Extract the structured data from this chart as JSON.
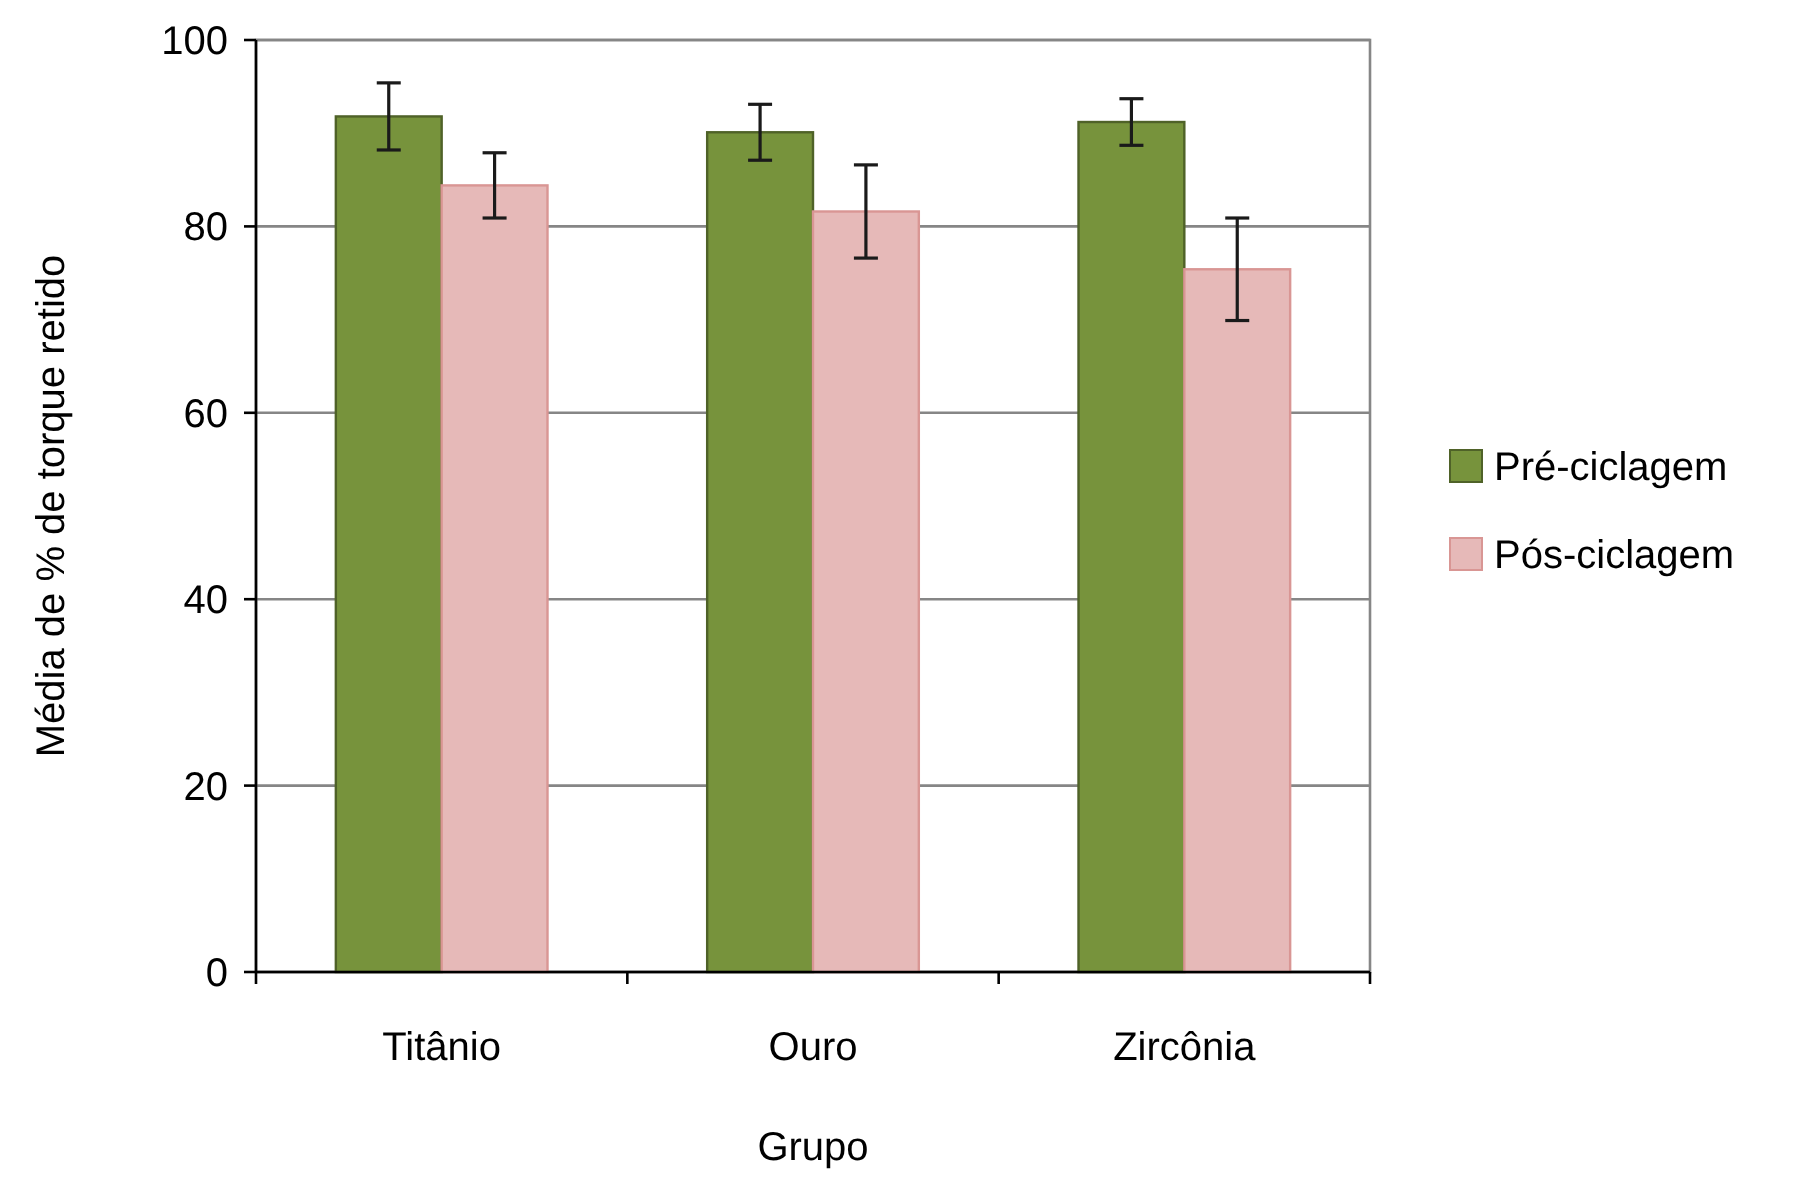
{
  "chart_data": {
    "type": "bar",
    "xlabel": "Grupo",
    "ylabel": "Média de % de torque retido",
    "categories": [
      "Titânio",
      "Ouro",
      "Zircônia"
    ],
    "series": [
      {
        "name": "Pré-ciclagem",
        "color": "#77933c",
        "values": [
          91.8,
          90.1,
          91.2
        ],
        "errors": [
          3.6,
          3,
          2.5
        ]
      },
      {
        "name": "Pós-ciclagem",
        "color": "#e6b9b8",
        "values": [
          84.4,
          81.6,
          75.4
        ],
        "errors": [
          3.5,
          5,
          5.5
        ]
      }
    ],
    "ylim": [
      0,
      100
    ],
    "yticks": [
      0,
      20,
      40,
      60,
      80,
      100
    ],
    "grid": "y",
    "legend": "right"
  }
}
